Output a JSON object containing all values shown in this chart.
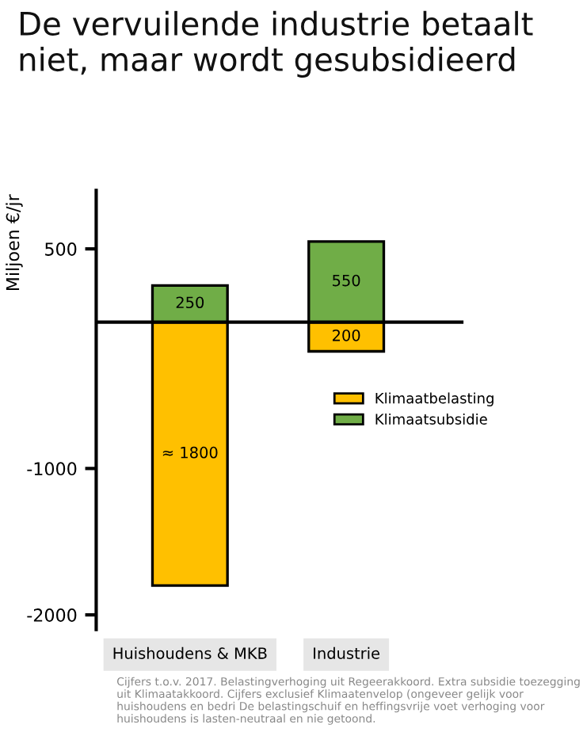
{
  "chart_data": {
    "type": "bar",
    "title": "De vervuilende industrie betaalt niet, maar wordt gesubsidieerd",
    "ylabel": "Miljoen €/jr",
    "categories": [
      "Huishoudens & MKB",
      "Industrie"
    ],
    "series": [
      {
        "name": "Klimaatbelasting",
        "color": "#ffc000",
        "values": [
          1800,
          200
        ],
        "base": [
          -1800,
          -200
        ],
        "value_labels": [
          "≈ 1800",
          "200"
        ]
      },
      {
        "name": "Klimaatsubsidie",
        "color": "#70ad47",
        "values": [
          250,
          550
        ],
        "base": [
          0,
          0
        ],
        "value_labels": [
          "250",
          "550"
        ]
      }
    ],
    "ylim": [
      -2100,
      900
    ],
    "yticks": [
      -2000,
      -1000,
      500
    ],
    "ref_lines": [
      {
        "axis": "y",
        "value": 0,
        "color": "#000000"
      }
    ],
    "legend": "right",
    "grid": false,
    "annotations": [
      "Cijfers t.o.v. 2017. Belastingverhoging uit Regeerakkoord. Extra subsidie toezegging uit Klimaatakkoord. Cijfers exclusief Klimaatenvelop (ongeveer gelijk voor huishoudens en bedri De belastingschuif en heffingsvrije voet verhoging voor huishoudens is lasten-neutraal en nie getoond."
    ]
  }
}
